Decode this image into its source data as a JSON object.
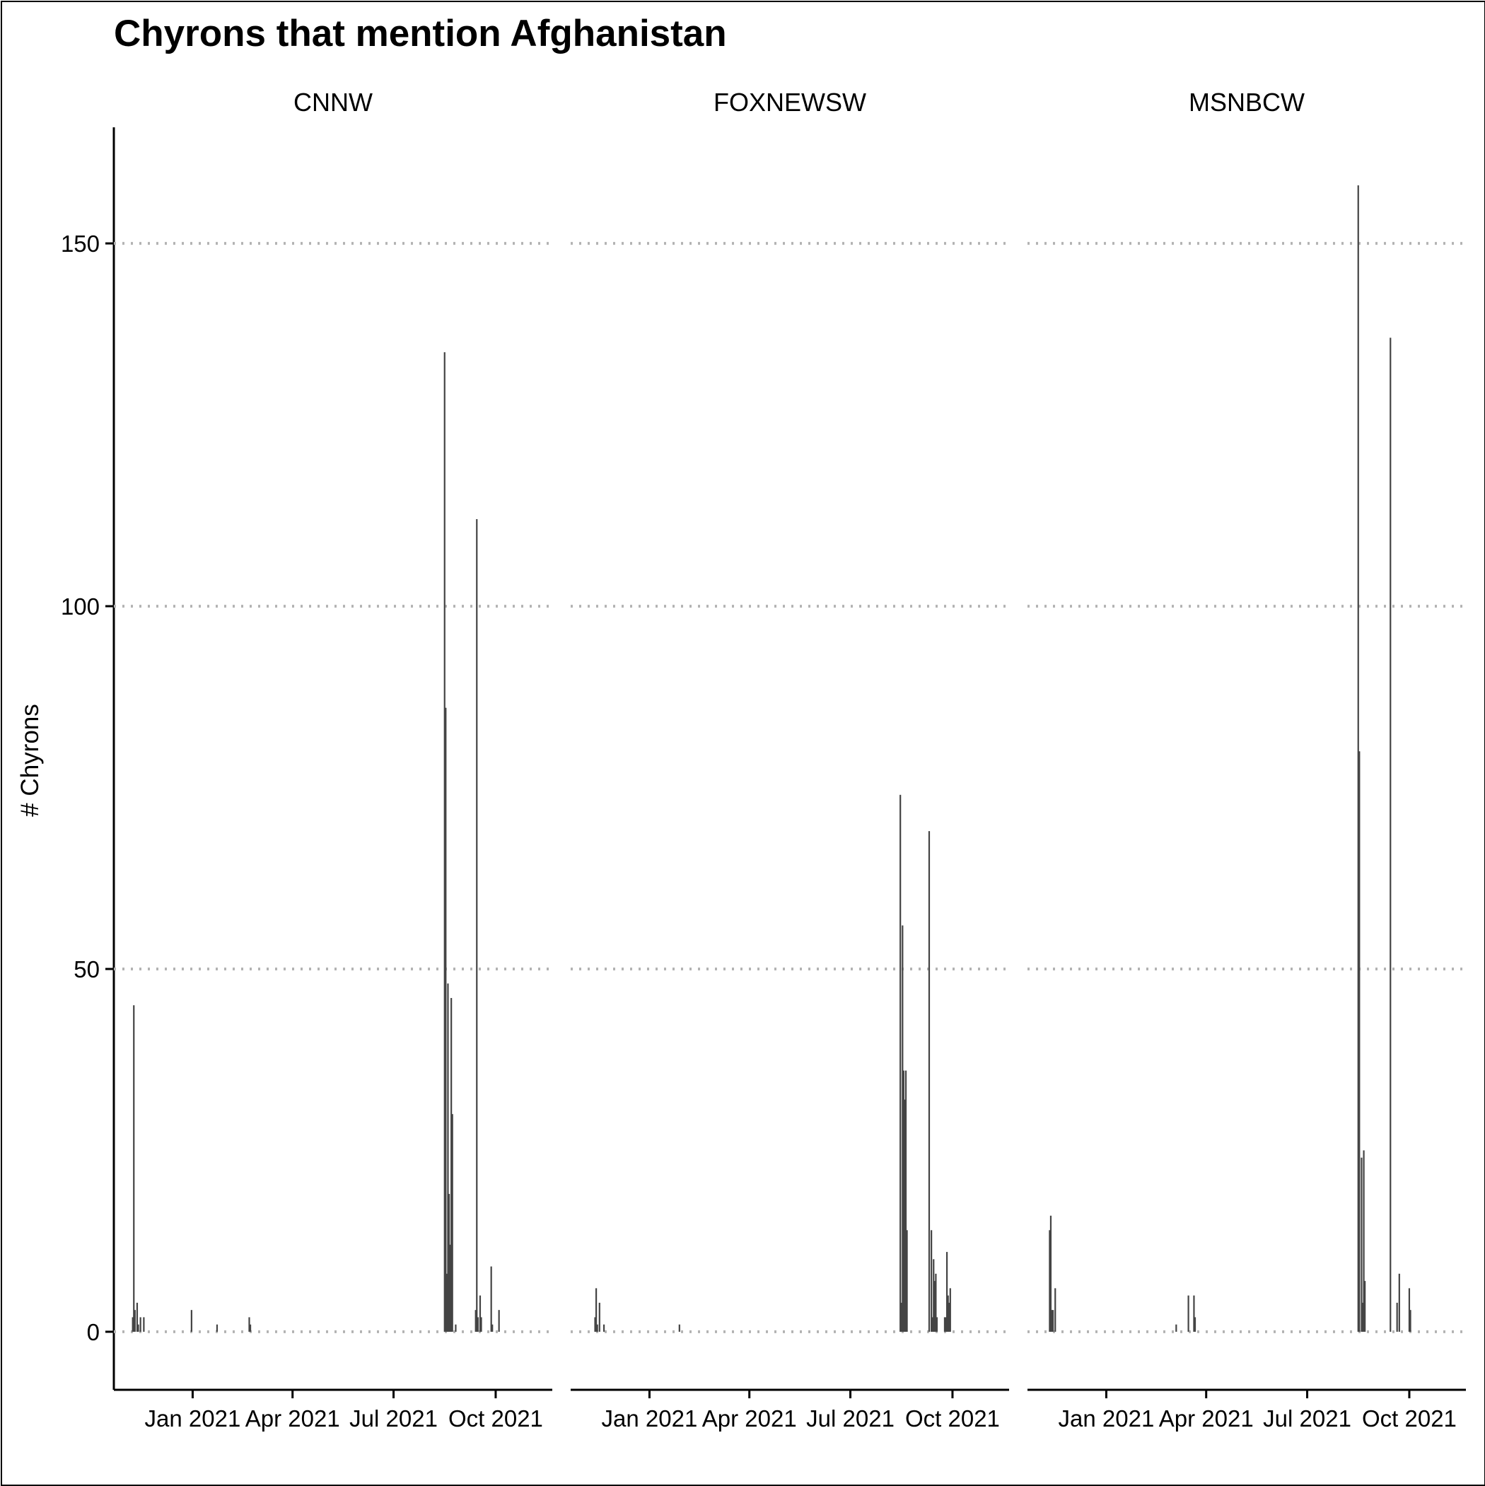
{
  "chart_data": {
    "type": "bar",
    "title": "Chyrons that mention Afghanistan",
    "ylabel": "# Chyrons",
    "xlabel": "",
    "ylim": [
      -8,
      166
    ],
    "xlim": [
      "2020-10-22",
      "2021-11-21"
    ],
    "yticks": [
      0,
      50,
      100,
      150
    ],
    "xticks": [
      {
        "date": "2021-01-01",
        "label": "Jan 2021"
      },
      {
        "date": "2021-04-01",
        "label": "Apr 2021"
      },
      {
        "date": "2021-07-01",
        "label": "Jul 2021"
      },
      {
        "date": "2021-10-01",
        "label": "Oct 2021"
      }
    ],
    "grid": "horizontal dotted",
    "bar_color": "#444444",
    "grid_color": "#b3b3b3",
    "panels": [
      {
        "name": "CNNW",
        "points": [
          {
            "x": "2020-11-08",
            "y": 2
          },
          {
            "x": "2020-11-09",
            "y": 45
          },
          {
            "x": "2020-11-10",
            "y": 3
          },
          {
            "x": "2020-11-12",
            "y": 4
          },
          {
            "x": "2020-11-13",
            "y": 1
          },
          {
            "x": "2020-11-15",
            "y": 2
          },
          {
            "x": "2020-11-18",
            "y": 2
          },
          {
            "x": "2020-12-31",
            "y": 3
          },
          {
            "x": "2021-01-23",
            "y": 1
          },
          {
            "x": "2021-02-21",
            "y": 2
          },
          {
            "x": "2021-02-22",
            "y": 1
          },
          {
            "x": "2021-08-16",
            "y": 135
          },
          {
            "x": "2021-08-17",
            "y": 86
          },
          {
            "x": "2021-08-18",
            "y": 8
          },
          {
            "x": "2021-08-19",
            "y": 48
          },
          {
            "x": "2021-08-20",
            "y": 19
          },
          {
            "x": "2021-08-21",
            "y": 12
          },
          {
            "x": "2021-08-22",
            "y": 46
          },
          {
            "x": "2021-08-23",
            "y": 30
          },
          {
            "x": "2021-08-26",
            "y": 1
          },
          {
            "x": "2021-09-13",
            "y": 3
          },
          {
            "x": "2021-09-14",
            "y": 112
          },
          {
            "x": "2021-09-15",
            "y": 2
          },
          {
            "x": "2021-09-17",
            "y": 5
          },
          {
            "x": "2021-09-18",
            "y": 2
          },
          {
            "x": "2021-09-27",
            "y": 9
          },
          {
            "x": "2021-09-28",
            "y": 1
          },
          {
            "x": "2021-10-04",
            "y": 3
          }
        ]
      },
      {
        "name": "FOXNEWSW",
        "points": [
          {
            "x": "2020-11-13",
            "y": 2
          },
          {
            "x": "2020-11-14",
            "y": 6
          },
          {
            "x": "2020-11-15",
            "y": 1
          },
          {
            "x": "2020-11-17",
            "y": 4
          },
          {
            "x": "2020-11-21",
            "y": 1
          },
          {
            "x": "2021-01-28",
            "y": 1
          },
          {
            "x": "2021-08-15",
            "y": 74
          },
          {
            "x": "2021-08-16",
            "y": 4
          },
          {
            "x": "2021-08-17",
            "y": 56
          },
          {
            "x": "2021-08-18",
            "y": 36
          },
          {
            "x": "2021-08-19",
            "y": 32
          },
          {
            "x": "2021-08-20",
            "y": 36
          },
          {
            "x": "2021-08-21",
            "y": 14
          },
          {
            "x": "2021-09-10",
            "y": 69
          },
          {
            "x": "2021-09-12",
            "y": 14
          },
          {
            "x": "2021-09-13",
            "y": 2
          },
          {
            "x": "2021-09-14",
            "y": 10
          },
          {
            "x": "2021-09-15",
            "y": 7
          },
          {
            "x": "2021-09-16",
            "y": 8
          },
          {
            "x": "2021-09-17",
            "y": 2
          },
          {
            "x": "2021-09-24",
            "y": 2
          },
          {
            "x": "2021-09-25",
            "y": 2
          },
          {
            "x": "2021-09-26",
            "y": 11
          },
          {
            "x": "2021-09-27",
            "y": 5
          },
          {
            "x": "2021-09-28",
            "y": 4
          },
          {
            "x": "2021-09-29",
            "y": 6
          }
        ]
      },
      {
        "name": "MSNBCW",
        "points": [
          {
            "x": "2020-11-11",
            "y": 14
          },
          {
            "x": "2020-11-12",
            "y": 16
          },
          {
            "x": "2020-11-13",
            "y": 3
          },
          {
            "x": "2020-11-14",
            "y": 3
          },
          {
            "x": "2020-11-16",
            "y": 6
          },
          {
            "x": "2021-03-05",
            "y": 1
          },
          {
            "x": "2021-03-16",
            "y": 5
          },
          {
            "x": "2021-03-21",
            "y": 5
          },
          {
            "x": "2021-03-22",
            "y": 2
          },
          {
            "x": "2021-08-16",
            "y": 158
          },
          {
            "x": "2021-08-17",
            "y": 80
          },
          {
            "x": "2021-08-19",
            "y": 24
          },
          {
            "x": "2021-08-20",
            "y": 4
          },
          {
            "x": "2021-08-21",
            "y": 25
          },
          {
            "x": "2021-08-22",
            "y": 7
          },
          {
            "x": "2021-09-14",
            "y": 137
          },
          {
            "x": "2021-09-20",
            "y": 4
          },
          {
            "x": "2021-09-22",
            "y": 8
          },
          {
            "x": "2021-10-01",
            "y": 6
          },
          {
            "x": "2021-10-02",
            "y": 3
          }
        ]
      }
    ]
  }
}
